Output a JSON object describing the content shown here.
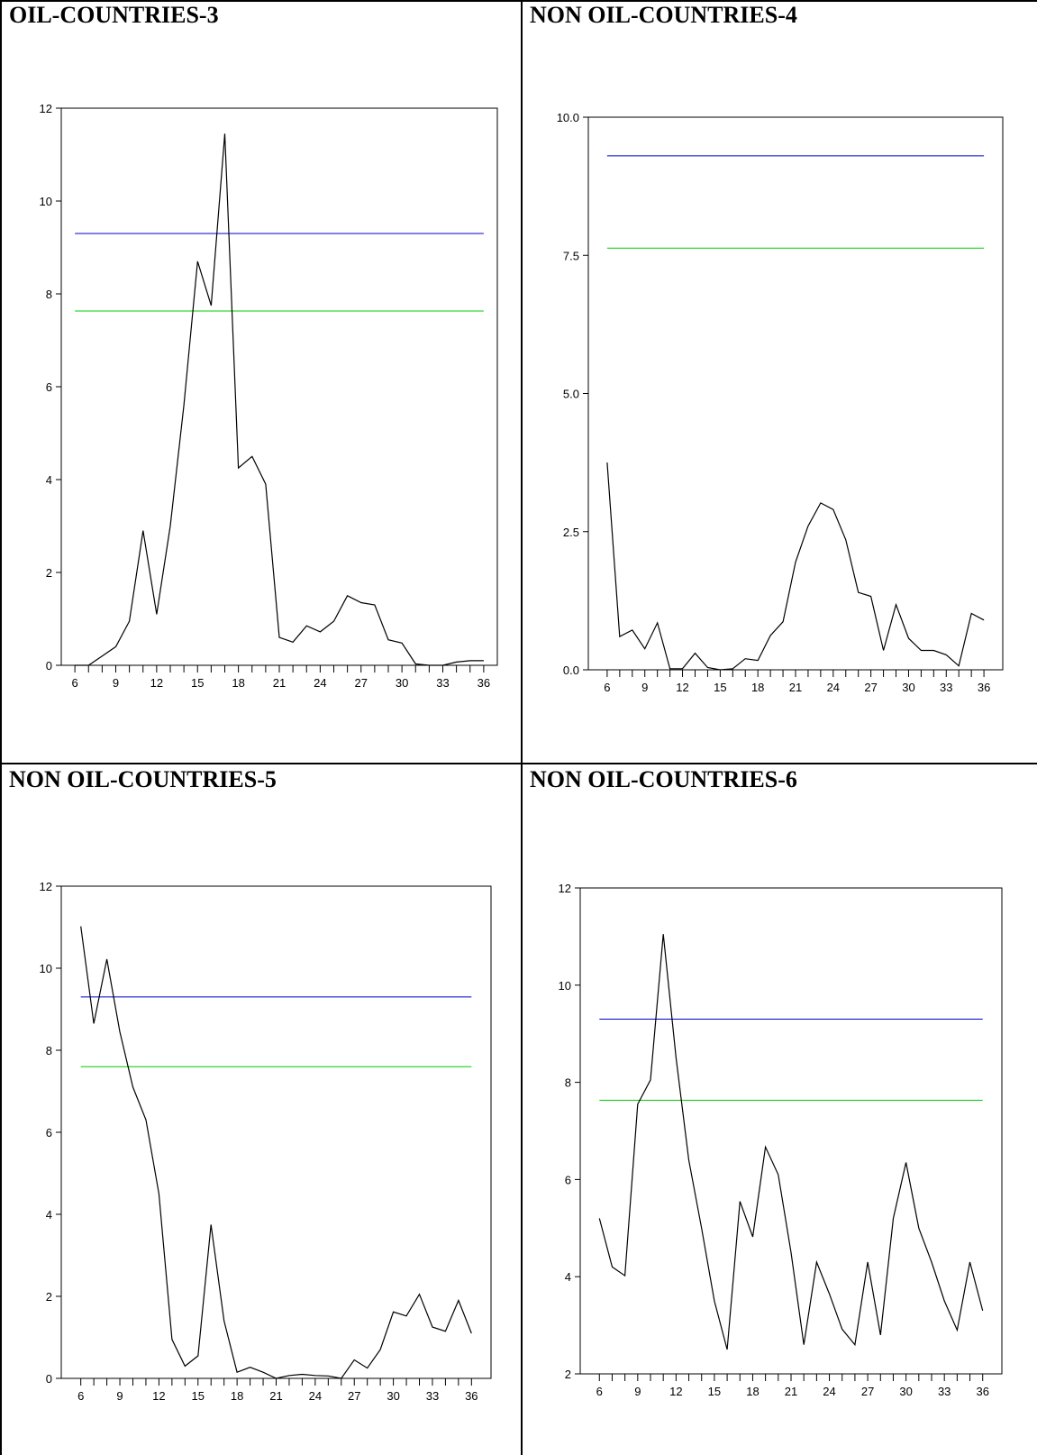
{
  "chart_data": [
    {
      "type": "line",
      "title": "OIL-COUNTRIES-3",
      "x": [
        6,
        7,
        8,
        9,
        10,
        11,
        12,
        13,
        14,
        15,
        16,
        17,
        18,
        19,
        20,
        21,
        22,
        23,
        24,
        25,
        26,
        27,
        28,
        29,
        30,
        31,
        32,
        33,
        34,
        35,
        36
      ],
      "series": [
        {
          "values": [
            0,
            0,
            0.2,
            0.4,
            0.95,
            2.9,
            1.1,
            3.0,
            5.6,
            8.7,
            7.75,
            11.45,
            4.25,
            4.5,
            3.9,
            0.6,
            0.5,
            0.85,
            0.72,
            0.95,
            1.5,
            1.35,
            1.3,
            0.55,
            0.48,
            0.03,
            0,
            0,
            0.07,
            0.1,
            0.1
          ],
          "color": "#000000"
        }
      ],
      "reference_lines": [
        {
          "value": 9.3,
          "color": "#0000cc"
        },
        {
          "value": 7.63,
          "color": "#00cc00"
        }
      ],
      "xlim": [
        5,
        37
      ],
      "ylim": [
        0,
        12
      ],
      "xticks": [
        6,
        9,
        12,
        15,
        18,
        21,
        24,
        27,
        30,
        33,
        36
      ],
      "yticks": [
        0,
        2,
        4,
        6,
        8,
        10,
        12
      ],
      "ytick_labels": [
        "0",
        "2",
        "4",
        "6",
        "8",
        "10",
        "12"
      ]
    },
    {
      "type": "line",
      "title": "NON OIL-COUNTRIES-4",
      "x": [
        6,
        7,
        8,
        9,
        10,
        11,
        12,
        13,
        14,
        15,
        16,
        17,
        18,
        19,
        20,
        21,
        22,
        23,
        24,
        25,
        26,
        27,
        28,
        29,
        30,
        31,
        32,
        33,
        34,
        35,
        36
      ],
      "series": [
        {
          "values": [
            3.75,
            0.6,
            0.72,
            0.38,
            0.85,
            0.02,
            0.02,
            0.3,
            0.04,
            0,
            0.02,
            0.2,
            0.17,
            0.62,
            0.87,
            1.95,
            2.6,
            3.02,
            2.9,
            2.35,
            1.4,
            1.33,
            0.35,
            1.18,
            0.57,
            0.35,
            0.35,
            0.27,
            0.07,
            1.02,
            0.9
          ],
          "color": "#000000"
        }
      ],
      "reference_lines": [
        {
          "value": 9.3,
          "color": "#0000cc"
        },
        {
          "value": 7.63,
          "color": "#00cc00"
        }
      ],
      "xlim": [
        4.5,
        37.5
      ],
      "ylim": [
        0,
        10
      ],
      "xticks": [
        6,
        9,
        12,
        15,
        18,
        21,
        24,
        27,
        30,
        33,
        36
      ],
      "yticks": [
        0,
        2.5,
        5,
        7.5,
        10
      ],
      "ytick_labels": [
        "0.0",
        "2.5",
        "5.0",
        "7.5",
        "10.0"
      ]
    },
    {
      "type": "line",
      "title": "NON OIL-COUNTRIES-5",
      "x": [
        6,
        7,
        8,
        9,
        10,
        11,
        12,
        13,
        14,
        15,
        16,
        17,
        18,
        19,
        20,
        21,
        22,
        23,
        24,
        25,
        26,
        27,
        28,
        29,
        30,
        31,
        32,
        33,
        34,
        35,
        36
      ],
      "series": [
        {
          "values": [
            11.02,
            8.65,
            10.22,
            8.45,
            7.1,
            6.3,
            4.5,
            0.95,
            0.3,
            0.55,
            3.75,
            1.4,
            0.15,
            0.27,
            0.15,
            0,
            0.07,
            0.1,
            0.07,
            0.06,
            0,
            0.45,
            0.25,
            0.7,
            1.62,
            1.52,
            2.05,
            1.25,
            1.15,
            1.9,
            1.1
          ],
          "color": "#000000"
        }
      ],
      "reference_lines": [
        {
          "value": 9.3,
          "color": "#0000cc"
        },
        {
          "value": 7.6,
          "color": "#00cc00"
        }
      ],
      "xlim": [
        4.5,
        37.5
      ],
      "ylim": [
        0,
        12
      ],
      "xticks": [
        6,
        9,
        12,
        15,
        18,
        21,
        24,
        27,
        30,
        33,
        36
      ],
      "yticks": [
        0,
        2,
        4,
        6,
        8,
        10,
        12
      ],
      "ytick_labels": [
        "0",
        "2",
        "4",
        "6",
        "8",
        "10",
        "12"
      ]
    },
    {
      "type": "line",
      "title": "NON OIL-COUNTRIES-6",
      "x": [
        6,
        7,
        8,
        9,
        10,
        11,
        12,
        13,
        14,
        15,
        16,
        17,
        18,
        19,
        20,
        21,
        22,
        23,
        24,
        25,
        26,
        27,
        28,
        29,
        30,
        31,
        32,
        33,
        34,
        35,
        36
      ],
      "series": [
        {
          "values": [
            5.2,
            4.2,
            4.02,
            7.55,
            8.05,
            11.05,
            8.5,
            6.4,
            5.0,
            3.5,
            2.5,
            5.55,
            4.82,
            6.67,
            6.1,
            4.5,
            2.6,
            4.3,
            3.65,
            2.92,
            2.6,
            4.3,
            2.8,
            5.2,
            6.35,
            5.0,
            4.3,
            3.5,
            2.9,
            4.3,
            3.3
          ],
          "color": "#000000"
        }
      ],
      "reference_lines": [
        {
          "value": 9.3,
          "color": "#0000cc"
        },
        {
          "value": 7.63,
          "color": "#00cc00"
        }
      ],
      "xlim": [
        4.5,
        37.5
      ],
      "ylim": [
        2,
        12
      ],
      "xticks": [
        6,
        9,
        12,
        15,
        18,
        21,
        24,
        27,
        30,
        33,
        36
      ],
      "yticks": [
        2,
        4,
        6,
        8,
        10,
        12
      ],
      "ytick_labels": [
        "2",
        "4",
        "6",
        "8",
        "10",
        "12"
      ]
    }
  ]
}
